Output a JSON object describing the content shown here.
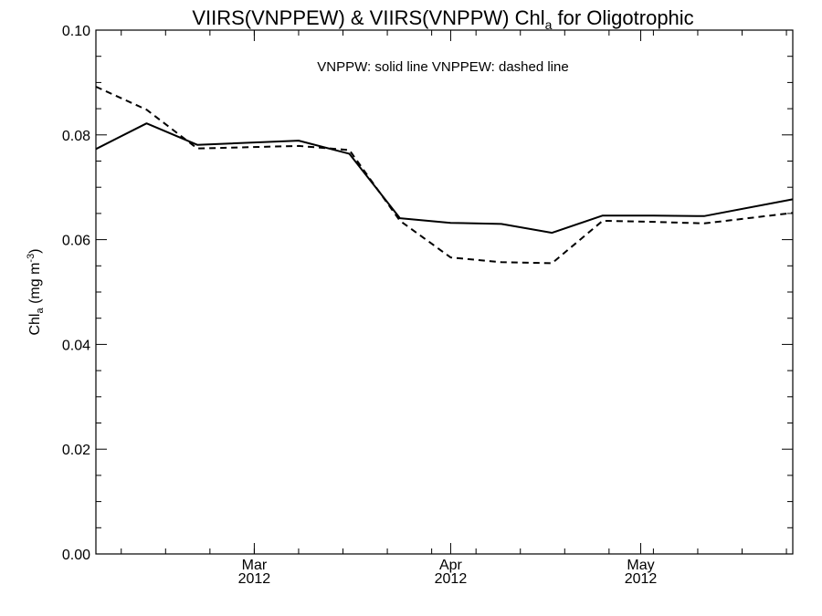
{
  "chart_data": {
    "type": "line",
    "title": {
      "main": "VIIRS(VNPPEW) & VIIRS(VNPPW)  Chl",
      "subscript": "a",
      "suffix": " for Oligotrophic"
    },
    "ylabel": {
      "main": "Chl",
      "subscript": "a",
      "unit": " (mg m",
      "unit_sup": "-3",
      "unit_close": ")"
    },
    "legend_text": "VNPPW: solid line   VNPPEW: dashed line",
    "legend_placement": "top-center",
    "grid": false,
    "xlim": [
      "2012-02-05",
      "2012-05-25"
    ],
    "ylim": [
      0,
      0.1
    ],
    "y_ticks": [
      0.0,
      0.02,
      0.04,
      0.06,
      0.08,
      0.1
    ],
    "y_tick_labels": [
      "0.00",
      "0.02",
      "0.04",
      "0.06",
      "0.08",
      "0.10"
    ],
    "x_ticks": [
      {
        "date": "2012-03-01",
        "month": "Mar",
        "year": "2012"
      },
      {
        "date": "2012-04-01",
        "month": "Apr",
        "year": "2012"
      },
      {
        "date": "2012-05-01",
        "month": "May",
        "year": "2012"
      }
    ],
    "series": [
      {
        "name": "VNPPW",
        "style": "solid",
        "color": "#000000",
        "x": [
          "2012-02-05",
          "2012-02-13",
          "2012-02-21",
          "2012-03-08",
          "2012-03-16",
          "2012-03-24",
          "2012-04-01",
          "2012-04-09",
          "2012-04-17",
          "2012-04-25",
          "2012-05-03",
          "2012-05-11",
          "2012-05-25"
        ],
        "values": [
          0.0773,
          0.0822,
          0.0781,
          0.0789,
          0.0764,
          0.0641,
          0.0632,
          0.063,
          0.0613,
          0.0646,
          0.0646,
          0.0645,
          0.0677
        ]
      },
      {
        "name": "VNPPEW",
        "style": "dashed",
        "color": "#000000",
        "x": [
          "2012-02-05",
          "2012-02-13",
          "2012-02-21",
          "2012-03-08",
          "2012-03-16",
          "2012-03-24",
          "2012-04-01",
          "2012-04-09",
          "2012-04-17",
          "2012-04-25",
          "2012-05-03",
          "2012-05-11",
          "2012-05-25"
        ],
        "values": [
          0.0892,
          0.0848,
          0.0774,
          0.0779,
          0.0771,
          0.0636,
          0.0566,
          0.0557,
          0.0555,
          0.0636,
          0.0634,
          0.0631,
          0.0651
        ]
      }
    ]
  }
}
